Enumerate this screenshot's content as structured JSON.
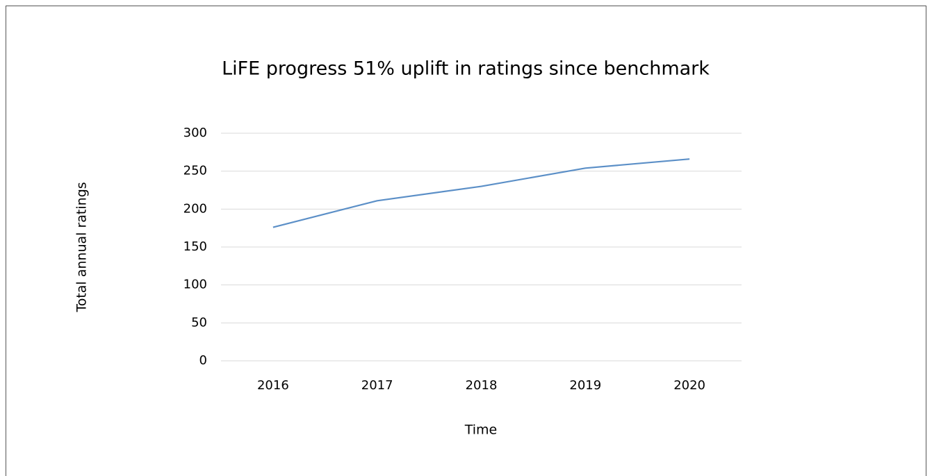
{
  "chart_data": {
    "type": "line",
    "title": "LiFE progress 51% uplift in ratings since benchmark",
    "x_label": "Time",
    "y_label": "Total annual ratings",
    "categories": [
      "2016",
      "2017",
      "2018",
      "2019",
      "2020"
    ],
    "values": [
      176,
      211,
      230,
      254,
      266
    ],
    "color": "#5b8fc7",
    "ylim": [
      0,
      300
    ],
    "yticks": [
      0,
      50,
      100,
      150,
      200,
      250,
      300
    ],
    "grid": true
  }
}
